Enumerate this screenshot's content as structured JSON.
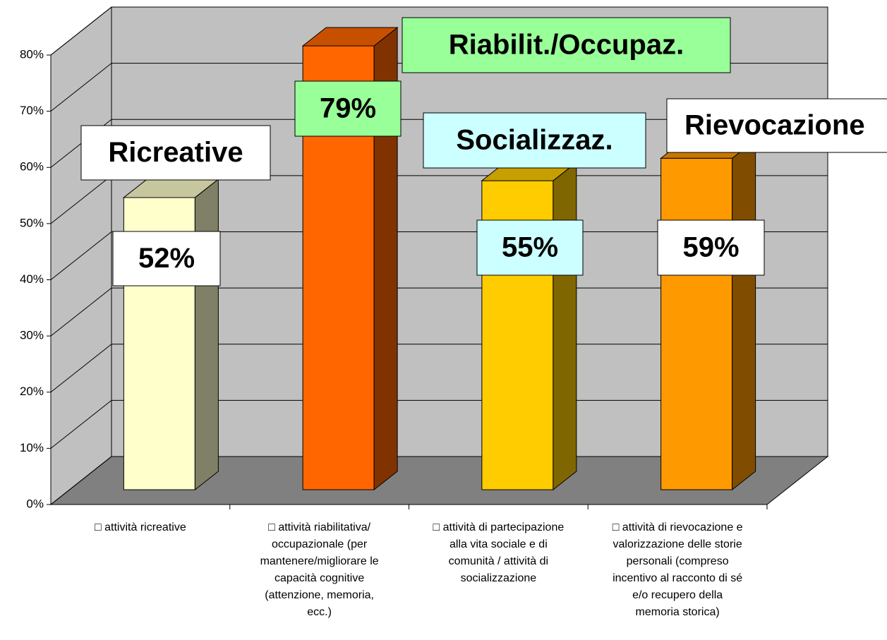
{
  "chart_data": {
    "type": "bar",
    "categories": [
      "□ attività ricreative",
      "□  attività  riabilitativa/\noccupazionale (per\nmantenere/migliorare le\ncapacità cognitive\n(attenzione, memoria,\necc.)",
      "□ attività di  partecipazione\nalla vita sociale e di\ncomunità / attività di\nsocializzazione",
      "□ attività di rievocazione e\nvalorizzazione delle storie\npersonali (compreso\nincentivo al racconto di sé\ne/o recupero della\nmemoria storica)"
    ],
    "values": [
      52,
      79,
      55,
      59
    ],
    "value_labels": [
      "52%",
      "79%",
      "55%",
      "59%"
    ],
    "colors": [
      "#ffffcc",
      "#ff6600",
      "#ffcc00",
      "#ff9900"
    ],
    "value_label_colors": [
      "#ffffff",
      "#99ff99",
      "#ccffff",
      "#ffffff"
    ],
    "annotations": [
      {
        "text": "Ricreative",
        "color": "#ffffff"
      },
      {
        "text": "Riabilit./Occupaz.",
        "color": "#99ff99"
      },
      {
        "text": "Socializzaz.",
        "color": "#ccffff"
      },
      {
        "text": "Rievocazione",
        "color": "#ffffff"
      }
    ],
    "ylim": [
      0,
      80
    ],
    "yticks": [
      {
        "value": 0,
        "label": "0%"
      },
      {
        "value": 10,
        "label": "10%"
      },
      {
        "value": 20,
        "label": "20%"
      },
      {
        "value": 30,
        "label": "30%"
      },
      {
        "value": 40,
        "label": "40%"
      },
      {
        "value": 50,
        "label": "50%"
      },
      {
        "value": 60,
        "label": "60%"
      },
      {
        "value": 70,
        "label": "70%"
      },
      {
        "value": 80,
        "label": "80%"
      }
    ],
    "grid": true
  }
}
